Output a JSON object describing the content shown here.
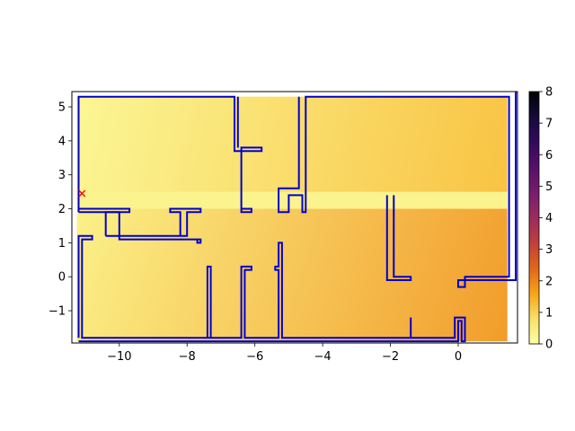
{
  "chart_data": {
    "type": "heatmap",
    "title": "",
    "xlabel": "",
    "ylabel": "",
    "xlim": [
      -11.4,
      1.75
    ],
    "ylim": [
      -1.95,
      5.45
    ],
    "x_ticks": [
      -10,
      -8,
      -6,
      -4,
      -2,
      0
    ],
    "x_tick_labels": [
      "−10",
      "−8",
      "−6",
      "−4",
      "−2",
      "0"
    ],
    "y_ticks": [
      -1,
      0,
      1,
      2,
      3,
      4,
      5
    ],
    "y_tick_labels": [
      "−1",
      "0",
      "1",
      "2",
      "3",
      "4",
      "5"
    ],
    "colormap": "inferno_r",
    "colorbar": {
      "range": [
        0,
        8
      ],
      "ticks": [
        0,
        1,
        2,
        3,
        4,
        5,
        6,
        7,
        8
      ],
      "tick_labels": [
        "0",
        "1",
        "2",
        "3",
        "4",
        "5",
        "6",
        "7",
        "8"
      ],
      "placement": "right"
    },
    "heat_extent": {
      "x": [
        -11.25,
        1.45
      ],
      "y": [
        -1.9,
        5.3
      ]
    },
    "heat_bands": [
      {
        "x0": -11.25,
        "y0": 5.3,
        "x1": 1.45,
        "y1": 2.5,
        "value_from": 0.2,
        "value_to": 1.3
      },
      {
        "x0": -11.25,
        "y0": 2.0,
        "x1": 1.45,
        "y1": -1.9,
        "value_from": 0.4,
        "value_to": 1.9
      }
    ],
    "walls_color": "#0000cc",
    "walls": [
      [
        [
          -11.2,
          1.9
        ],
        [
          -11.2,
          5.3
        ],
        [
          -6.6,
          5.3
        ],
        [
          -6.6,
          3.7
        ],
        [
          -5.8,
          3.7
        ],
        [
          -5.8,
          3.8
        ],
        [
          -6.4,
          3.8
        ],
        [
          -6.4,
          1.9
        ],
        [
          -6.1,
          1.9
        ],
        [
          -6.1,
          2.0
        ],
        [
          -6.4,
          2.0
        ]
      ],
      [
        [
          -11.2,
          1.9
        ],
        [
          -9.7,
          1.9
        ],
        [
          -9.7,
          2.0
        ],
        [
          -11.2,
          2.0
        ]
      ],
      [
        [
          -10.4,
          1.2
        ],
        [
          -8.0,
          1.2
        ],
        [
          -8.0,
          1.9
        ],
        [
          -7.6,
          1.9
        ],
        [
          -7.6,
          2.0
        ],
        [
          -8.5,
          2.0
        ],
        [
          -8.5,
          1.9
        ],
        [
          -8.2,
          1.9
        ],
        [
          -8.2,
          1.2
        ]
      ],
      [
        [
          -10.4,
          1.2
        ],
        [
          -10.4,
          1.9
        ],
        [
          -10.0,
          1.9
        ],
        [
          -10.0,
          1.1
        ],
        [
          -7.6,
          1.1
        ],
        [
          -7.6,
          1.0
        ],
        [
          -7.7,
          1.0
        ],
        [
          -7.7,
          1.1
        ]
      ],
      [
        [
          -6.5,
          5.3
        ],
        [
          -6.5,
          3.8
        ]
      ],
      [
        [
          -4.7,
          5.3
        ],
        [
          -4.7,
          2.6
        ],
        [
          -5.3,
          2.6
        ],
        [
          -5.3,
          1.9
        ],
        [
          -5.0,
          1.9
        ],
        [
          -5.0,
          2.4
        ],
        [
          -4.6,
          2.4
        ],
        [
          -4.6,
          1.9
        ],
        [
          -4.5,
          1.9
        ],
        [
          -4.5,
          5.3
        ],
        [
          1.5,
          5.3
        ],
        [
          1.5,
          0.0
        ],
        [
          0.2,
          0.0
        ],
        [
          0.2,
          -0.3
        ],
        [
          0.0,
          -0.3
        ],
        [
          0.0,
          -0.1
        ],
        [
          1.7,
          -0.1
        ],
        [
          1.7,
          5.45
        ]
      ],
      [
        [
          -11.2,
          -1.8
        ],
        [
          -11.2,
          1.2
        ],
        [
          -10.8,
          1.2
        ],
        [
          -10.8,
          1.1
        ],
        [
          -11.1,
          1.1
        ],
        [
          -11.1,
          -1.8
        ],
        [
          -7.3,
          -1.8
        ],
        [
          -7.3,
          0.3
        ],
        [
          -7.4,
          0.3
        ],
        [
          -7.4,
          -1.8
        ],
        [
          -6.4,
          -1.8
        ],
        [
          -6.4,
          0.3
        ],
        [
          -6.1,
          0.3
        ],
        [
          -6.1,
          0.2
        ],
        [
          -6.3,
          0.2
        ],
        [
          -6.3,
          -1.8
        ],
        [
          -5.3,
          -1.8
        ],
        [
          -5.3,
          0.2
        ],
        [
          -5.4,
          0.2
        ],
        [
          -5.4,
          0.3
        ],
        [
          -5.3,
          0.3
        ],
        [
          -5.3,
          1.0
        ],
        [
          -5.2,
          1.0
        ],
        [
          -5.2,
          -1.8
        ],
        [
          -0.1,
          -1.8
        ],
        [
          -0.1,
          -1.2
        ],
        [
          0.2,
          -1.2
        ],
        [
          0.2,
          -1.9
        ],
        [
          0.1,
          -1.9
        ],
        [
          0.1,
          -1.3
        ],
        [
          0.0,
          -1.3
        ],
        [
          0.0,
          -1.9
        ],
        [
          -11.2,
          -1.9
        ]
      ],
      [
        [
          -2.1,
          2.4
        ],
        [
          -2.1,
          -0.1
        ],
        [
          -1.4,
          -0.1
        ],
        [
          -1.4,
          0.0
        ],
        [
          -1.9,
          0.0
        ],
        [
          -1.9,
          2.4
        ]
      ],
      [
        [
          -1.4,
          -1.8
        ],
        [
          -1.4,
          -1.2
        ]
      ]
    ],
    "marker": {
      "x": -11.1,
      "y": 2.45,
      "symbol": "x",
      "color": "#ff0000"
    }
  }
}
